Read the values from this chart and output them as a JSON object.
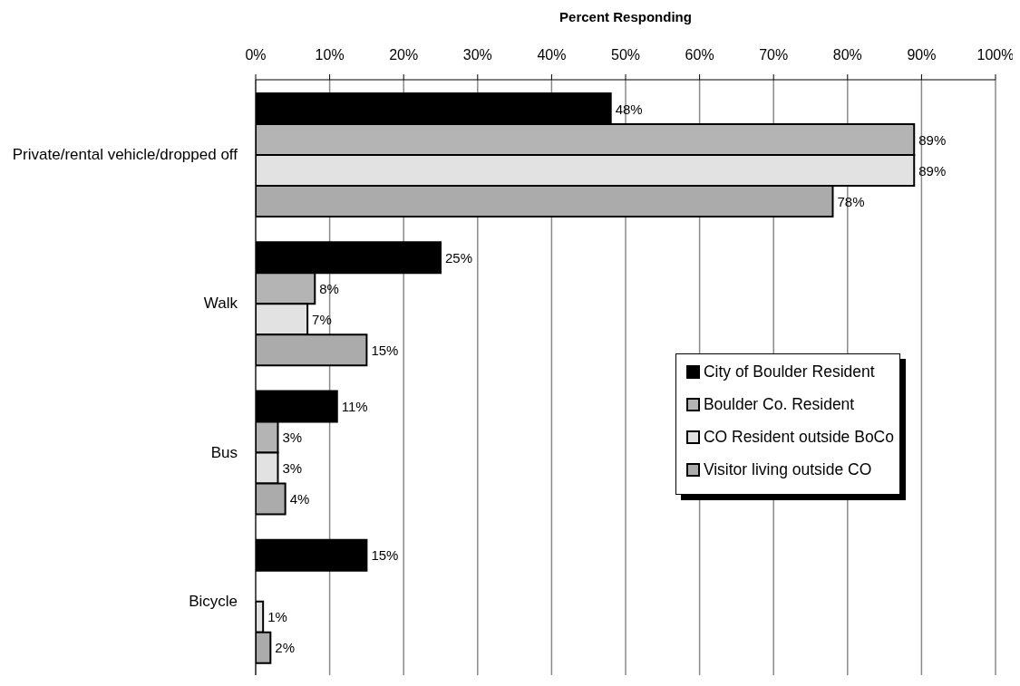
{
  "chart_data": {
    "type": "bar",
    "orientation": "horizontal",
    "xlabel": "Percent Responding",
    "categories": [
      "Private/rental vehicle/dropped off",
      "Walk",
      "Bus",
      "Bicycle"
    ],
    "series": [
      {
        "name": "City of Boulder Resident",
        "color": "#000000",
        "values": [
          48,
          25,
          11,
          15
        ],
        "value_labels": [
          "48%",
          "25%",
          "11%",
          "15%"
        ]
      },
      {
        "name": "Boulder Co. Resident",
        "color": "#b4b4b4",
        "values": [
          89,
          8,
          3,
          null
        ],
        "value_labels": [
          "89%",
          "8%",
          "3%",
          null
        ]
      },
      {
        "name": "CO Resident outside BoCo",
        "color": "#e2e2e2",
        "values": [
          89,
          7,
          3,
          1
        ],
        "value_labels": [
          "89%",
          "7%",
          "3%",
          "1%"
        ]
      },
      {
        "name": "Visitor living outside CO",
        "color": "#ababab",
        "values": [
          78,
          15,
          4,
          2
        ],
        "value_labels": [
          "78%",
          "15%",
          "4%",
          "2%"
        ]
      }
    ],
    "xlim": [
      0,
      100
    ],
    "xticks": [
      {
        "value": 0,
        "label": "0%"
      },
      {
        "value": 10,
        "label": "10%"
      },
      {
        "value": 20,
        "label": "20%"
      },
      {
        "value": 30,
        "label": "30%"
      },
      {
        "value": 40,
        "label": "40%"
      },
      {
        "value": 50,
        "label": "50%"
      },
      {
        "value": 60,
        "label": "60%"
      },
      {
        "value": 70,
        "label": "70%"
      },
      {
        "value": 80,
        "label": "80%"
      },
      {
        "value": 90,
        "label": "90%"
      },
      {
        "value": 100,
        "label": "100%"
      }
    ],
    "grid": "x",
    "legend": "right"
  }
}
